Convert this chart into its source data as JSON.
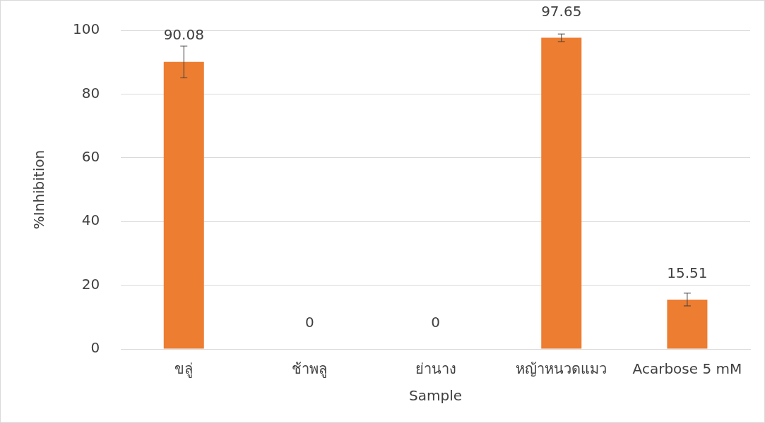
{
  "chart_data": {
    "type": "bar",
    "xlabel": "Sample",
    "ylabel": "%Inhibition",
    "categories": [
      "ขลู่",
      "ช้าพลู",
      "ย่านาง",
      "หญ้าหนวดแมว",
      "Acarbose 5 mM"
    ],
    "values": [
      90.08,
      0,
      0,
      97.65,
      15.51
    ],
    "errors": [
      5,
      null,
      null,
      1.2,
      2
    ],
    "color": "#ed7d31",
    "data_labels": true,
    "ylim": [
      0,
      100
    ],
    "yticks": [
      0,
      20,
      40,
      60,
      80,
      100
    ],
    "grid": "y",
    "legend": false
  }
}
